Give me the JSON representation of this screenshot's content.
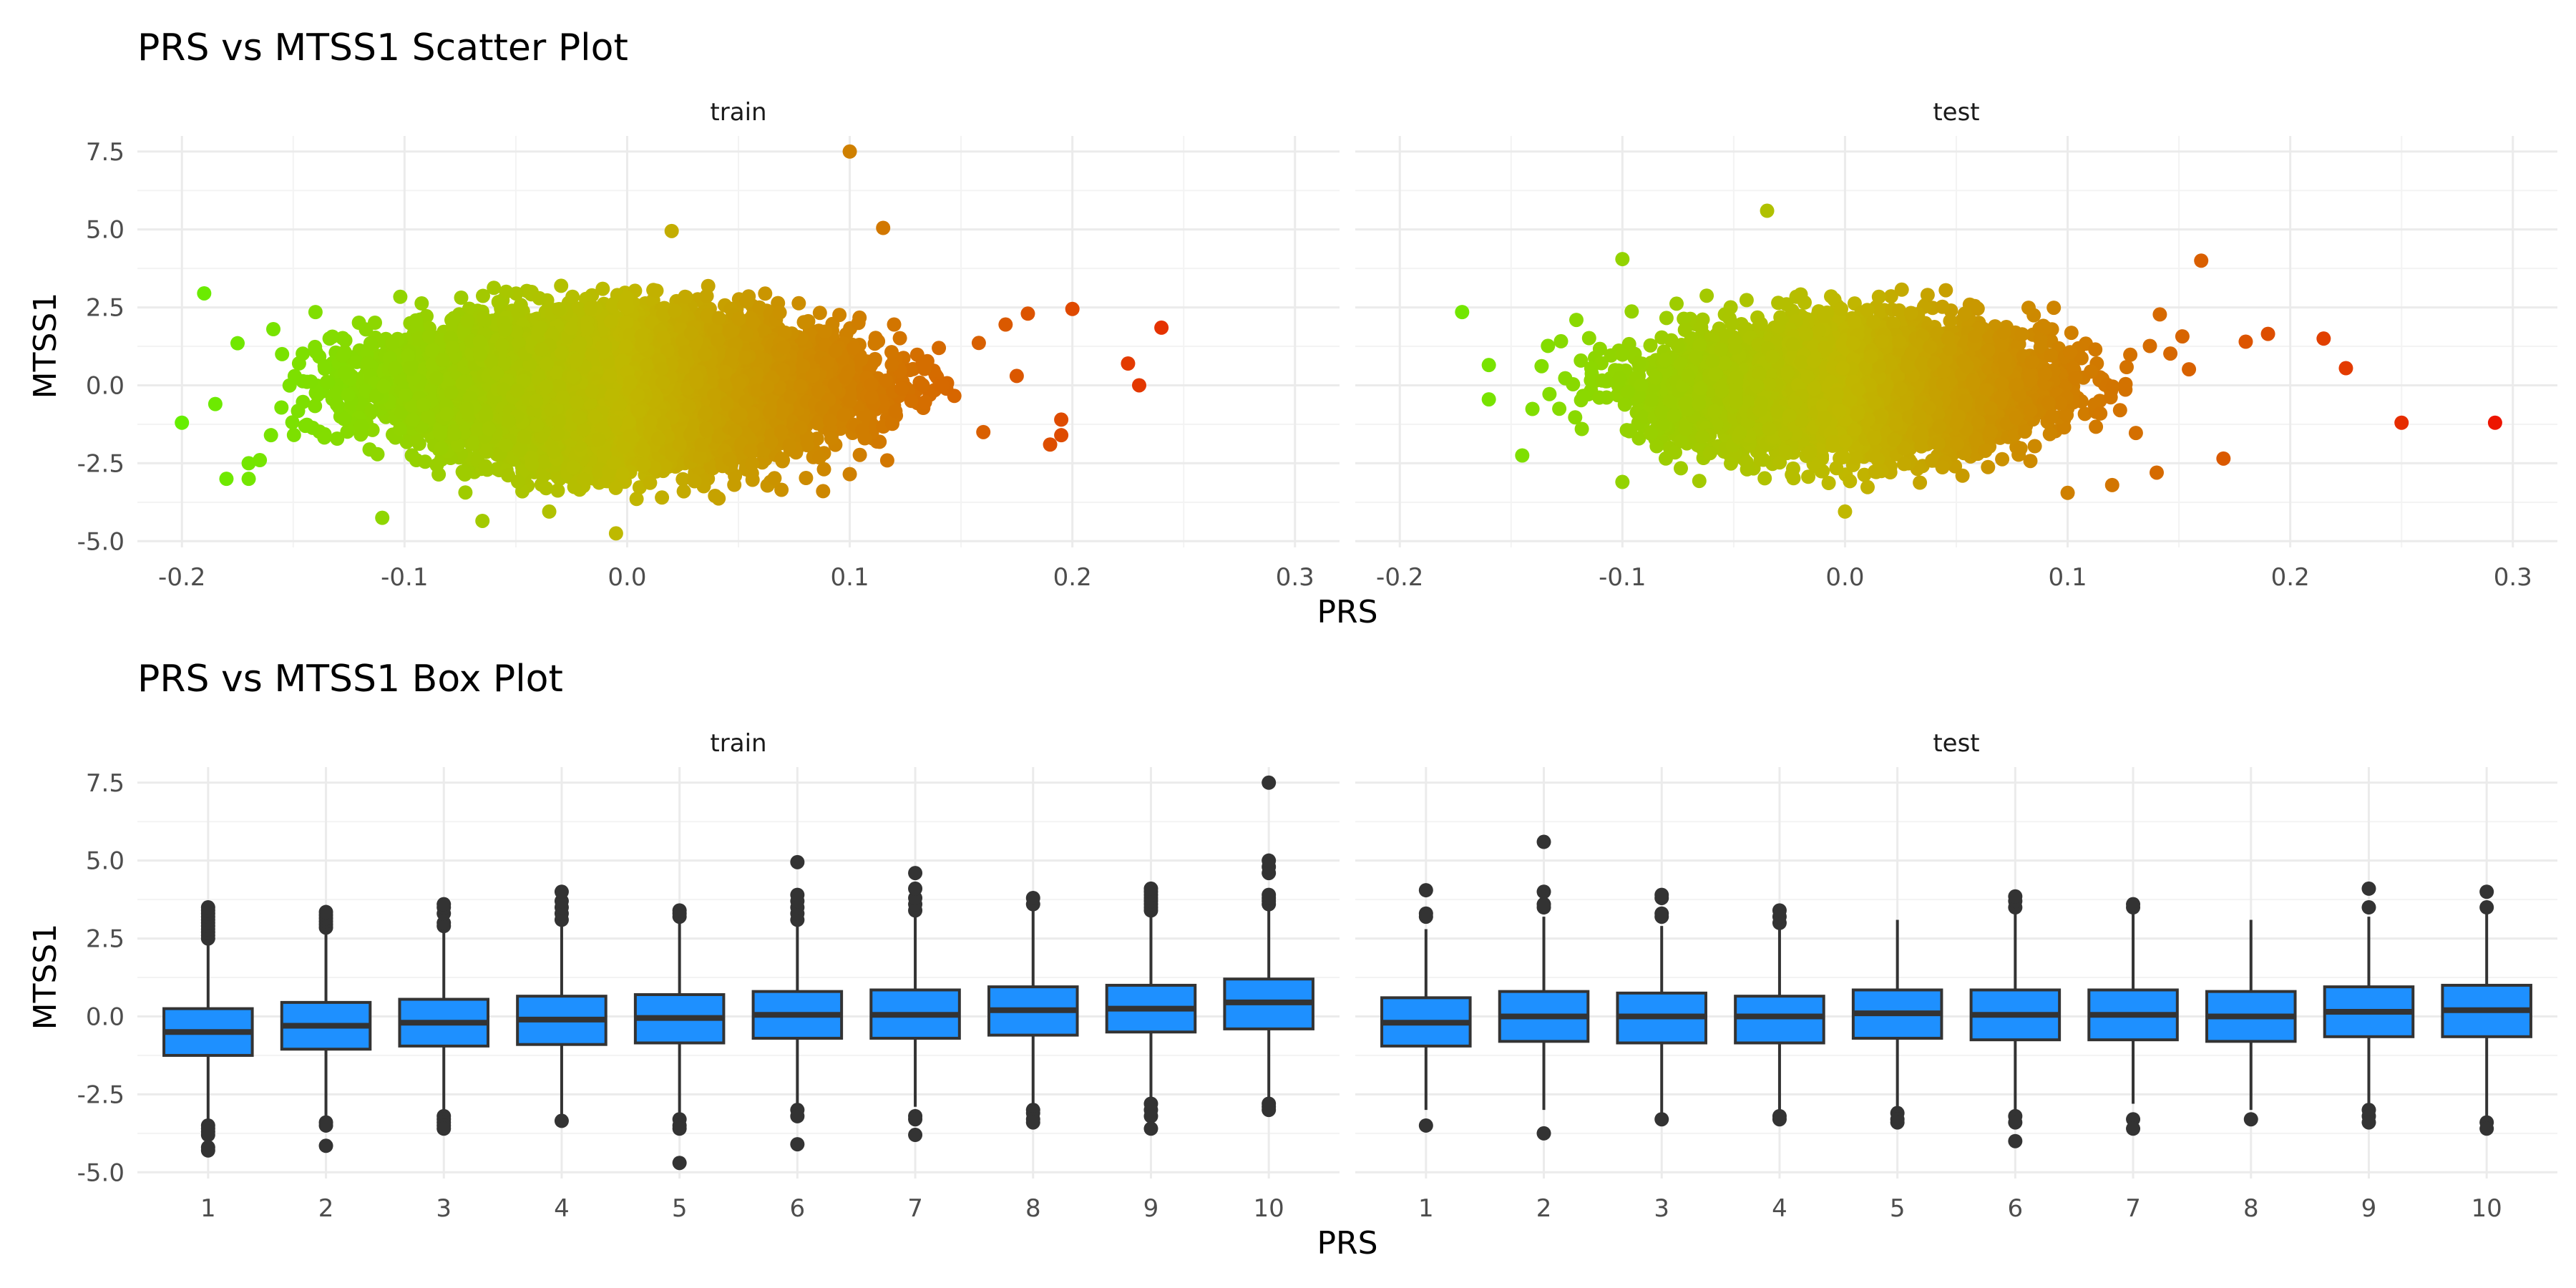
{
  "chart_data": [
    {
      "type": "scatter",
      "title": "PRS vs MTSS1 Scatter Plot",
      "xlabel": "PRS",
      "ylabel": "MTSS1",
      "xlim": [
        -0.22,
        0.32
      ],
      "ylim": [
        -5.2,
        8.0
      ],
      "xticks": [
        "-0.2",
        "-0.1",
        "0.0",
        "0.1",
        "0.2",
        "0.3"
      ],
      "yticks": [
        "-5.0",
        "-2.5",
        "0.0",
        "2.5",
        "5.0",
        "7.5"
      ],
      "color_scale": {
        "low": "#66ee00",
        "mid": "#c0b800",
        "high": "#ee1100",
        "domain": [
          -0.2,
          0.3
        ]
      },
      "panels": [
        {
          "name": "train",
          "cloud": {
            "x_mean": -0.005,
            "x_sd": 0.045,
            "y_mean": -0.05,
            "y_sd": 1.05,
            "x_range": [
              -0.16,
              0.17
            ],
            "n": 14000
          },
          "outliers": [
            [
              -0.2,
              -1.2
            ],
            [
              -0.19,
              2.95
            ],
            [
              -0.185,
              -0.6
            ],
            [
              -0.175,
              1.35
            ],
            [
              -0.18,
              -3.0
            ],
            [
              -0.17,
              -2.5
            ],
            [
              -0.17,
              -3.0
            ],
            [
              -0.165,
              -2.4
            ],
            [
              -0.16,
              -1.6
            ],
            [
              -0.155,
              1.0
            ],
            [
              -0.14,
              2.35
            ],
            [
              -0.11,
              -4.25
            ],
            [
              -0.065,
              -4.35
            ],
            [
              -0.035,
              -4.05
            ],
            [
              -0.005,
              -4.75
            ],
            [
              0.02,
              4.95
            ],
            [
              0.1,
              7.5
            ],
            [
              0.115,
              5.05
            ],
            [
              0.1,
              -2.85
            ],
            [
              0.18,
              2.3
            ],
            [
              0.19,
              -1.9
            ],
            [
              0.195,
              -1.1
            ],
            [
              0.195,
              -1.6
            ],
            [
              0.2,
              2.45
            ],
            [
              0.225,
              0.7
            ],
            [
              0.23,
              0.0
            ],
            [
              0.24,
              1.85
            ],
            [
              0.17,
              1.95
            ],
            [
              0.16,
              -1.5
            ],
            [
              0.175,
              0.3
            ]
          ]
        },
        {
          "name": "test",
          "cloud": {
            "x_mean": 0.0,
            "x_sd": 0.045,
            "y_mean": -0.05,
            "y_sd": 1.05,
            "x_range": [
              -0.15,
              0.17
            ],
            "n": 4200
          },
          "outliers": [
            [
              -0.172,
              2.35
            ],
            [
              -0.16,
              0.65
            ],
            [
              -0.16,
              -0.45
            ],
            [
              -0.145,
              -2.25
            ],
            [
              -0.1,
              4.05
            ],
            [
              -0.1,
              -3.1
            ],
            [
              -0.035,
              5.6
            ],
            [
              0.0,
              -4.05
            ],
            [
              0.1,
              -3.45
            ],
            [
              0.16,
              4.0
            ],
            [
              0.17,
              -2.35
            ],
            [
              0.18,
              1.4
            ],
            [
              0.19,
              1.65
            ],
            [
              0.215,
              1.5
            ],
            [
              0.225,
              0.55
            ],
            [
              0.25,
              -1.2
            ],
            [
              0.292,
              -1.2
            ],
            [
              0.14,
              -2.8
            ],
            [
              0.12,
              -3.2
            ]
          ]
        }
      ]
    },
    {
      "type": "box",
      "title": "PRS vs MTSS1 Box Plot",
      "xlabel": "PRS",
      "ylabel": "MTSS1",
      "ylim": [
        -5.2,
        8.0
      ],
      "yticks": [
        "-5.0",
        "-2.5",
        "0.0",
        "2.5",
        "5.0",
        "7.5"
      ],
      "categories": [
        "1",
        "2",
        "3",
        "4",
        "5",
        "6",
        "7",
        "8",
        "9",
        "10"
      ],
      "fill": "#1e90ff",
      "panels": [
        {
          "name": "train",
          "boxes": [
            {
              "q1": -1.25,
              "median": -0.5,
              "q3": 0.25,
              "lower": -3.4,
              "upper": 2.4,
              "outliers": [
                2.5,
                2.6,
                2.7,
                2.8,
                2.9,
                3.0,
                3.1,
                3.2,
                3.3,
                3.4,
                3.5,
                -3.5,
                -3.6,
                -3.7,
                -3.8,
                -4.2,
                -4.3
              ]
            },
            {
              "q1": -1.05,
              "median": -0.3,
              "q3": 0.45,
              "lower": -3.3,
              "upper": 2.8,
              "outliers": [
                2.85,
                2.95,
                3.05,
                3.15,
                3.25,
                3.35,
                -3.4,
                -3.5,
                -4.15
              ]
            },
            {
              "q1": -0.95,
              "median": -0.2,
              "q3": 0.55,
              "lower": -3.1,
              "upper": 2.8,
              "outliers": [
                2.9,
                3.0,
                3.3,
                3.5,
                3.6,
                -3.2,
                -3.3,
                -3.4,
                -3.5,
                -3.6
              ]
            },
            {
              "q1": -0.9,
              "median": -0.1,
              "q3": 0.65,
              "lower": -3.2,
              "upper": 3.0,
              "outliers": [
                3.1,
                3.3,
                3.5,
                3.7,
                4.0,
                -3.35
              ]
            },
            {
              "q1": -0.85,
              "median": -0.05,
              "q3": 0.7,
              "lower": -3.1,
              "upper": 3.1,
              "outliers": [
                3.2,
                3.3,
                3.4,
                -3.3,
                -3.5,
                -3.6,
                -4.7
              ]
            },
            {
              "q1": -0.7,
              "median": 0.05,
              "q3": 0.8,
              "lower": -2.9,
              "upper": 3.0,
              "outliers": [
                3.1,
                3.3,
                3.5,
                3.7,
                3.9,
                4.95,
                -3.0,
                -3.2,
                -4.1
              ]
            },
            {
              "q1": -0.7,
              "median": 0.05,
              "q3": 0.85,
              "lower": -2.9,
              "upper": 3.3,
              "outliers": [
                3.4,
                3.6,
                3.8,
                4.1,
                4.6,
                -3.2,
                -3.3,
                -3.8
              ]
            },
            {
              "q1": -0.6,
              "median": 0.2,
              "q3": 0.95,
              "lower": -2.9,
              "upper": 3.5,
              "outliers": [
                3.6,
                3.8,
                -3.0,
                -3.1,
                -3.3,
                -3.4
              ]
            },
            {
              "q1": -0.5,
              "median": 0.25,
              "q3": 1.0,
              "lower": -2.7,
              "upper": 3.3,
              "outliers": [
                3.4,
                3.5,
                3.6,
                3.7,
                3.8,
                3.9,
                4.0,
                4.1,
                -2.8,
                -3.0,
                -3.2,
                -3.6
              ]
            },
            {
              "q1": -0.4,
              "median": 0.45,
              "q3": 1.2,
              "lower": -2.7,
              "upper": 3.5,
              "outliers": [
                3.6,
                3.7,
                3.8,
                3.9,
                4.6,
                4.8,
                5.0,
                7.5,
                -2.8,
                -2.9,
                -3.0
              ]
            }
          ]
        },
        {
          "name": "test",
          "boxes": [
            {
              "q1": -0.95,
              "median": -0.2,
              "q3": 0.6,
              "lower": -3.0,
              "upper": 2.8,
              "outliers": [
                3.2,
                3.3,
                4.05,
                -3.5
              ]
            },
            {
              "q1": -0.8,
              "median": 0.0,
              "q3": 0.8,
              "lower": -3.0,
              "upper": 3.2,
              "outliers": [
                3.5,
                3.6,
                4.0,
                5.6,
                -3.75
              ]
            },
            {
              "q1": -0.85,
              "median": 0.0,
              "q3": 0.75,
              "lower": -3.2,
              "upper": 2.9,
              "outliers": [
                3.2,
                3.3,
                3.8,
                3.9,
                -3.3
              ]
            },
            {
              "q1": -0.85,
              "median": 0.0,
              "q3": 0.65,
              "lower": -3.0,
              "upper": 2.9,
              "outliers": [
                3.0,
                3.2,
                3.4,
                -3.2,
                -3.3
              ]
            },
            {
              "q1": -0.7,
              "median": 0.1,
              "q3": 0.85,
              "lower": -2.9,
              "upper": 3.1,
              "outliers": [
                -3.1,
                -3.3,
                -3.4
              ]
            },
            {
              "q1": -0.75,
              "median": 0.05,
              "q3": 0.85,
              "lower": -3.0,
              "upper": 3.3,
              "outliers": [
                3.5,
                3.7,
                3.85,
                -3.2,
                -3.4,
                -4.0
              ]
            },
            {
              "q1": -0.75,
              "median": 0.05,
              "q3": 0.85,
              "lower": -2.8,
              "upper": 3.4,
              "outliers": [
                3.5,
                3.6,
                -3.3,
                -3.6
              ]
            },
            {
              "q1": -0.8,
              "median": 0.0,
              "q3": 0.8,
              "lower": -3.0,
              "upper": 3.1,
              "outliers": [
                -3.3
              ]
            },
            {
              "q1": -0.65,
              "median": 0.15,
              "q3": 0.95,
              "lower": -2.9,
              "upper": 3.2,
              "outliers": [
                3.5,
                4.1,
                -3.0,
                -3.2,
                -3.4
              ]
            },
            {
              "q1": -0.65,
              "median": 0.2,
              "q3": 1.0,
              "lower": -3.2,
              "upper": 3.4,
              "outliers": [
                3.5,
                4.0,
                -3.4,
                -3.6
              ]
            }
          ]
        }
      ]
    }
  ]
}
